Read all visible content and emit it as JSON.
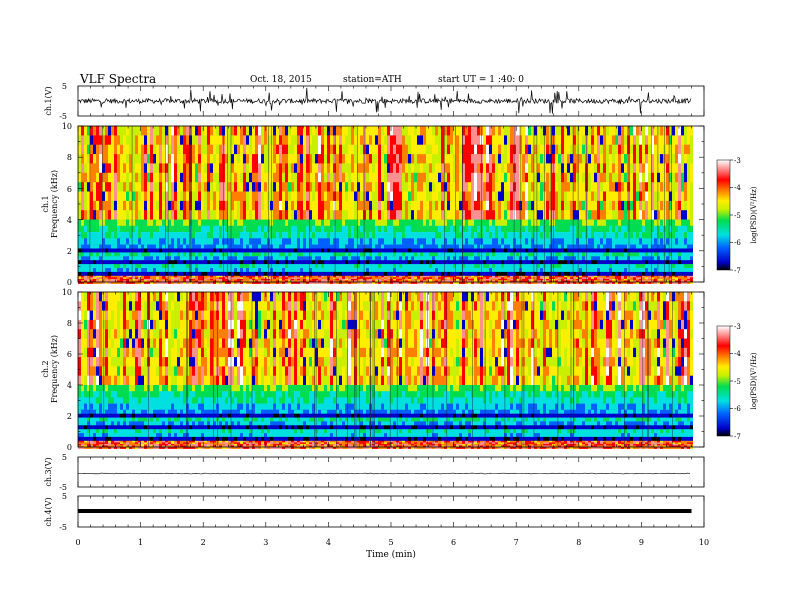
{
  "header": {
    "title": "VLF  Spectra",
    "date": "Oct. 18, 2015",
    "station": "station=ATH",
    "start": "start  UT  =   1 :40: 0"
  },
  "chart_data": [
    {
      "type": "line",
      "panel": "ch1-waveform",
      "ylabel": "ch.1(V)",
      "ylim": [
        -5,
        5
      ],
      "yticks": [
        "5",
        "-5"
      ],
      "xlim": [
        0,
        10
      ],
      "x_end": 9.8,
      "baseline": 0,
      "color": "#000000"
    },
    {
      "type": "heatmap",
      "panel": "ch1-spectrogram",
      "ylabel_channel": "ch.1",
      "ylabel": "Frequency  (kHz)",
      "ylim": [
        0,
        10
      ],
      "yticks": [
        "0",
        "2",
        "4",
        "6",
        "8",
        "10"
      ],
      "xlim": [
        0,
        10
      ],
      "x_end": 9.8,
      "colorbar": {
        "label": "log(PSD)(V²/Hz)",
        "range": [
          -7,
          -3
        ],
        "ticks": [
          "-3",
          "-4",
          "-5",
          "-6",
          "-7"
        ],
        "colors": [
          "#000000",
          "#0000c8",
          "#0060ff",
          "#00e0e0",
          "#00dd50",
          "#c8f000",
          "#ffee00",
          "#ff8000",
          "#ff0000",
          "#ff9090",
          "#ffffff"
        ]
      }
    },
    {
      "type": "heatmap",
      "panel": "ch2-spectrogram",
      "ylabel_channel": "ch.2",
      "ylabel": "Frequency  (kHz)",
      "ylim": [
        0,
        10
      ],
      "yticks": [
        "0",
        "2",
        "4",
        "6",
        "8",
        "10"
      ],
      "xlim": [
        0,
        10
      ],
      "x_end": 9.8,
      "colorbar": {
        "label": "log(PSD)(V²/Hz)",
        "range": [
          -7,
          -3
        ],
        "ticks": [
          "-3",
          "-4",
          "-5",
          "-6",
          "-7"
        ]
      }
    },
    {
      "type": "line",
      "panel": "ch3-waveform",
      "ylabel": "ch.3(V)",
      "ylim": [
        -5,
        5
      ],
      "yticks": [
        "5",
        "-5"
      ],
      "xlim": [
        0,
        10
      ],
      "x_end": 9.8,
      "baseline": -0.5
    },
    {
      "type": "line",
      "panel": "ch4-waveform",
      "ylabel": "ch.4(V)",
      "ylim": [
        -5,
        5
      ],
      "yticks": [
        "5",
        "-5"
      ],
      "xlim": [
        0,
        10
      ],
      "x_end": 9.8,
      "baseline": 0
    }
  ],
  "xaxis": {
    "label": "Time  (min)",
    "ticks": [
      "0",
      "1",
      "2",
      "3",
      "4",
      "5",
      "6",
      "7",
      "8",
      "9",
      "10"
    ]
  }
}
